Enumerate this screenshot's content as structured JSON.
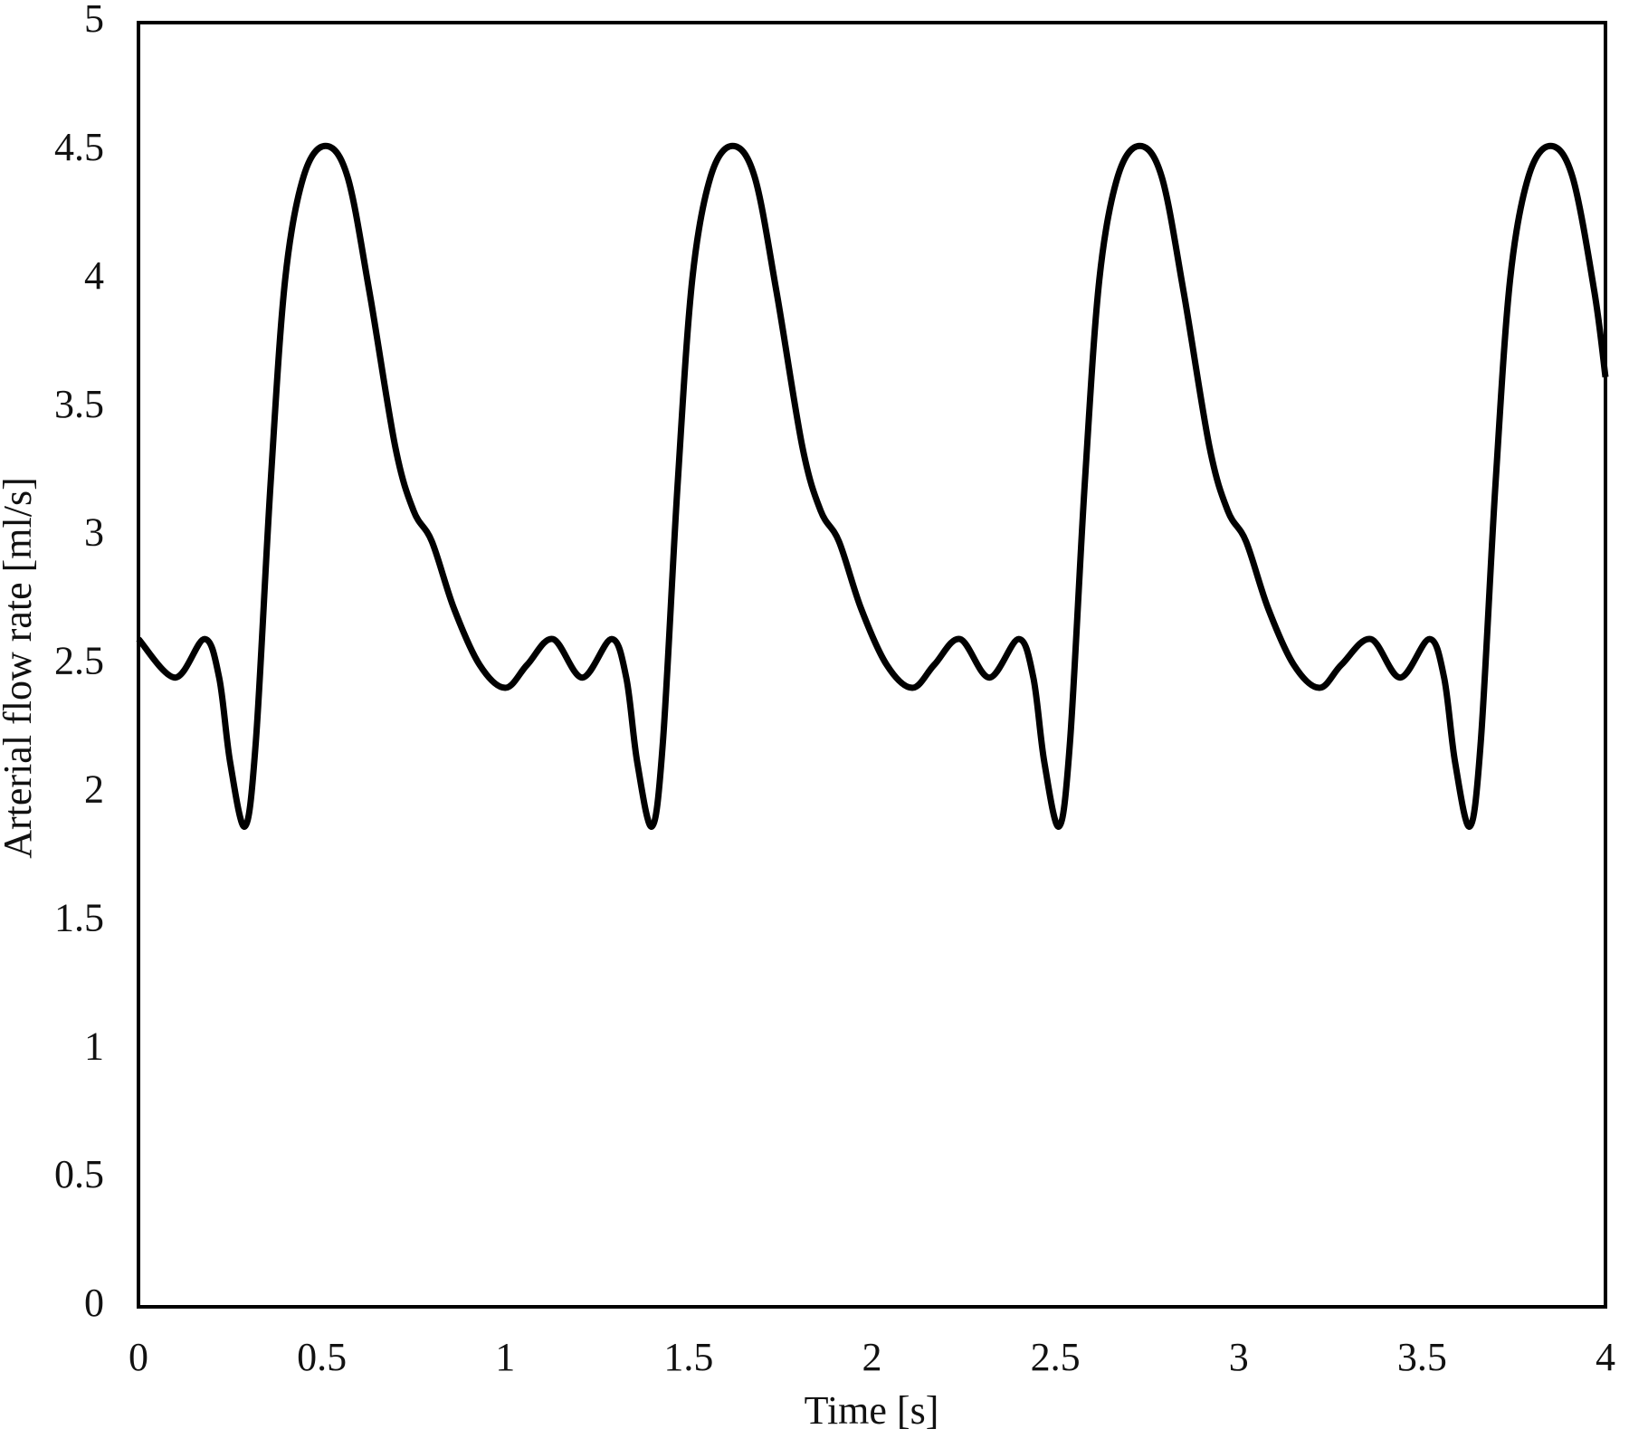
{
  "chart_data": {
    "type": "line",
    "xlabel": "Time [s]",
    "ylabel": "Arterial flow rate [ml/s]",
    "xlim": [
      0,
      4
    ],
    "xticks": [
      0,
      0.5,
      1,
      1.5,
      2,
      2.5,
      3,
      3.5,
      4
    ],
    "ylim": [
      0,
      5
    ],
    "yticks": [
      0,
      0.5,
      1,
      1.5,
      2,
      2.5,
      3,
      3.5,
      4,
      4.5,
      5
    ],
    "grid": false,
    "x": [
      0,
      0.1,
      0.18,
      0.22,
      0.25,
      0.29,
      0.32,
      0.36,
      0.4,
      0.45,
      0.51,
      0.57,
      0.63,
      0.7,
      0.75,
      0.8,
      0.86,
      0.93,
      1.0,
      1.06,
      1.13,
      1.21,
      1.29,
      1.33,
      1.36,
      1.4,
      1.43,
      1.47,
      1.51,
      1.56,
      1.62,
      1.68,
      1.74,
      1.81,
      1.86,
      1.91,
      1.97,
      2.04,
      2.11,
      2.17,
      2.24,
      2.32,
      2.4,
      2.44,
      2.47,
      2.51,
      2.54,
      2.58,
      2.62,
      2.67,
      2.73,
      2.79,
      2.85,
      2.92,
      2.97,
      3.02,
      3.08,
      3.15,
      3.22,
      3.28,
      3.36,
      3.44,
      3.52,
      3.56,
      3.59,
      3.63,
      3.66,
      3.7,
      3.74,
      3.79,
      3.85,
      3.91,
      3.97,
      4.0
    ],
    "series": [
      {
        "color": "#000000",
        "values": [
          2.6,
          2.45,
          2.6,
          2.45,
          2.12,
          1.87,
          2.2,
          3.2,
          4.0,
          4.4,
          4.52,
          4.4,
          3.95,
          3.35,
          3.1,
          2.98,
          2.72,
          2.5,
          2.41,
          2.5,
          2.6,
          2.45,
          2.6,
          2.45,
          2.12,
          1.87,
          2.2,
          3.2,
          4.0,
          4.4,
          4.52,
          4.4,
          3.95,
          3.35,
          3.1,
          2.98,
          2.72,
          2.5,
          2.41,
          2.5,
          2.6,
          2.45,
          2.6,
          2.45,
          2.12,
          1.87,
          2.2,
          3.2,
          4.0,
          4.4,
          4.52,
          4.4,
          3.95,
          3.35,
          3.1,
          2.98,
          2.72,
          2.5,
          2.41,
          2.5,
          2.6,
          2.45,
          2.6,
          2.45,
          2.12,
          1.87,
          2.2,
          3.2,
          4.0,
          4.4,
          4.52,
          4.4,
          3.95,
          3.62
        ]
      }
    ]
  }
}
